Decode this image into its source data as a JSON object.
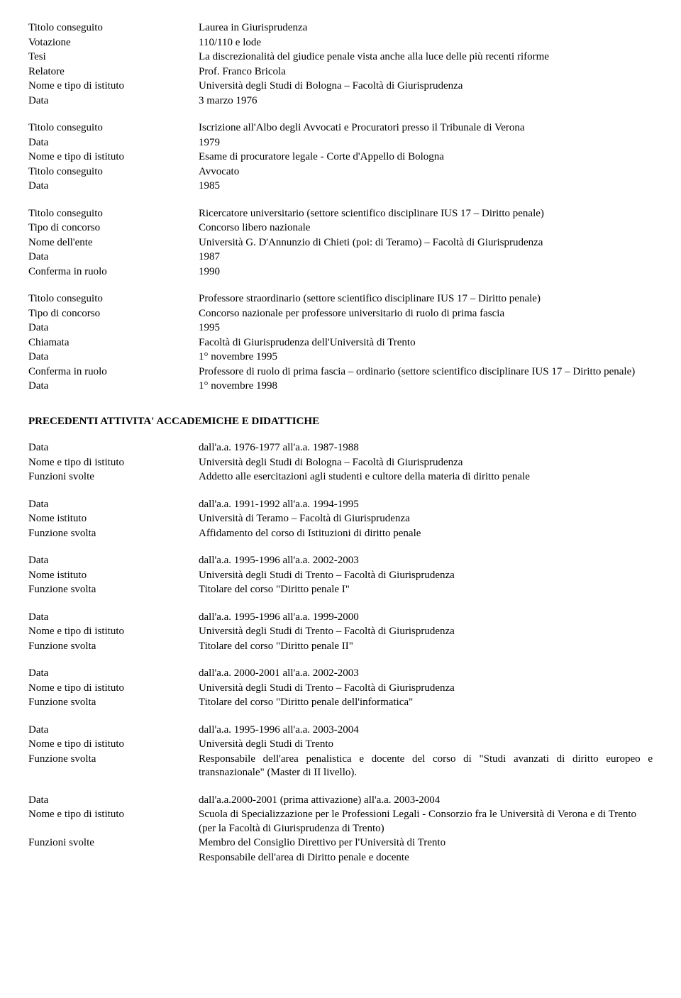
{
  "blocks": [
    {
      "rows": [
        {
          "label": "Titolo conseguito",
          "value": "Laurea in Giurisprudenza"
        },
        {
          "label": "Votazione",
          "value": "110/110 e lode"
        },
        {
          "label": "Tesi",
          "value": "La discrezionalità del giudice penale vista anche alla luce delle più recenti riforme"
        },
        {
          "label": "Relatore",
          "value": "Prof. Franco Bricola"
        },
        {
          "label": "Nome e tipo di istituto",
          "value": "Università degli Studi di Bologna – Facoltà di Giurisprudenza"
        },
        {
          "label": "Data",
          "value": "3 marzo 1976"
        }
      ]
    },
    {
      "rows": [
        {
          "label": "Titolo conseguito",
          "value": "Iscrizione all'Albo degli Avvocati e Procuratori presso il Tribunale di Verona"
        },
        {
          "label": "Data",
          "value": "1979"
        },
        {
          "label": "Nome e tipo di istituto",
          "value": "Esame di procuratore legale - Corte d'Appello di Bologna"
        },
        {
          "label": "Titolo conseguito",
          "value": "Avvocato"
        },
        {
          "label": "Data",
          "value": "1985"
        }
      ]
    },
    {
      "rows": [
        {
          "label": "Titolo conseguito",
          "value": "Ricercatore universitario (settore scientifico disciplinare IUS 17 – Diritto penale)"
        },
        {
          "label": "Tipo di concorso",
          "value": "Concorso libero nazionale"
        },
        {
          "label": "Nome dell'ente",
          "value": "Università G. D'Annunzio di Chieti (poi: di Teramo) – Facoltà di Giurisprudenza"
        },
        {
          "label": "Data",
          "value": "1987"
        },
        {
          "label": "Conferma in ruolo",
          "value": "1990"
        }
      ]
    },
    {
      "rows": [
        {
          "label": "Titolo conseguito",
          "value": "Professore straordinario (settore scientifico disciplinare IUS 17 – Diritto penale)"
        },
        {
          "label": "Tipo di concorso",
          "value": "Concorso nazionale per professore universitario di ruolo di prima fascia"
        },
        {
          "label": "Data",
          "value": "1995"
        },
        {
          "label": "Chiamata",
          "value": "Facoltà di Giurisprudenza dell'Università di Trento"
        },
        {
          "label": "Data",
          "value": "1° novembre 1995"
        },
        {
          "label": "Conferma in ruolo",
          "value": "Professore di ruolo di prima fascia – ordinario (settore scientifico disciplinare IUS 17 – Diritto penale)"
        },
        {
          "label": "Data",
          "value": "1° novembre 1998"
        }
      ]
    }
  ],
  "heading": "PRECEDENTI ATTIVITA' ACCADEMICHE E DIDATTICHE",
  "blocks2": [
    {
      "rows": [
        {
          "label": "Data",
          "value": "dall'a.a. 1976-1977 all'a.a. 1987-1988"
        },
        {
          "label": "Nome e tipo di istituto",
          "value": "Università degli Studi di Bologna – Facoltà di Giurisprudenza"
        },
        {
          "label": "Funzioni svolte",
          "value": "Addetto alle esercitazioni agli studenti e cultore della materia di diritto penale"
        }
      ]
    },
    {
      "rows": [
        {
          "label": "Data",
          "value": "dall'a.a. 1991-1992 all'a.a. 1994-1995"
        },
        {
          "label": "Nome istituto",
          "value": "Università di Teramo – Facoltà di Giurisprudenza"
        },
        {
          "label": "Funzione svolta",
          "value": "Affidamento del corso di Istituzioni di diritto penale"
        }
      ]
    },
    {
      "rows": [
        {
          "label": "Data",
          "value": "dall'a.a. 1995-1996 all'a.a. 2002-2003"
        },
        {
          "label": "Nome istituto",
          "value": "Università degli Studi di Trento – Facoltà di Giurisprudenza"
        },
        {
          "label": "Funzione svolta",
          "value": "Titolare del corso \"Diritto penale I\""
        }
      ]
    },
    {
      "rows": [
        {
          "label": "Data",
          "value": "dall'a.a. 1995-1996 all'a.a. 1999-2000"
        },
        {
          "label": "Nome e tipo di istituto",
          "value": "Università degli Studi di Trento – Facoltà di Giurisprudenza"
        },
        {
          "label": "Funzione svolta",
          "value": "Titolare del corso \"Diritto penale II\""
        }
      ]
    },
    {
      "rows": [
        {
          "label": "Data",
          "value": "dall'a.a. 2000-2001 all'a.a. 2002-2003"
        },
        {
          "label": "Nome e tipo di istituto",
          "value": "Università degli Studi di Trento – Facoltà di Giurisprudenza"
        },
        {
          "label": "Funzione svolta",
          "value": "Titolare del corso \"Diritto penale dell'informatica\""
        }
      ]
    },
    {
      "rows": [
        {
          "label": "Data",
          "value": "dall'a.a. 1995-1996 all'a.a. 2003-2004"
        },
        {
          "label": "Nome e tipo di istituto",
          "value": "Università degli Studi di Trento"
        },
        {
          "label": "Funzione svolta",
          "value": "Responsabile dell'area penalistica e docente del corso di \"Studi avanzati di diritto europeo e transnazionale\" (Master di II livello).",
          "justify": true
        }
      ]
    },
    {
      "rows": [
        {
          "label": "Data",
          "value": "dall'a.a.2000-2001 (prima attivazione) all'a.a. 2003-2004"
        },
        {
          "label": "Nome e tipo di istituto",
          "value": "Scuola di Specializzazione per le Professioni Legali - Consorzio fra le Università di Verona e di Trento (per la Facoltà di Giurisprudenza di Trento)"
        },
        {
          "label": "Funzioni svolte",
          "value": "Membro del Consiglio Direttivo per l'Università di Trento"
        },
        {
          "label": "",
          "value": "Responsabile dell'area di Diritto penale e docente"
        }
      ]
    }
  ]
}
